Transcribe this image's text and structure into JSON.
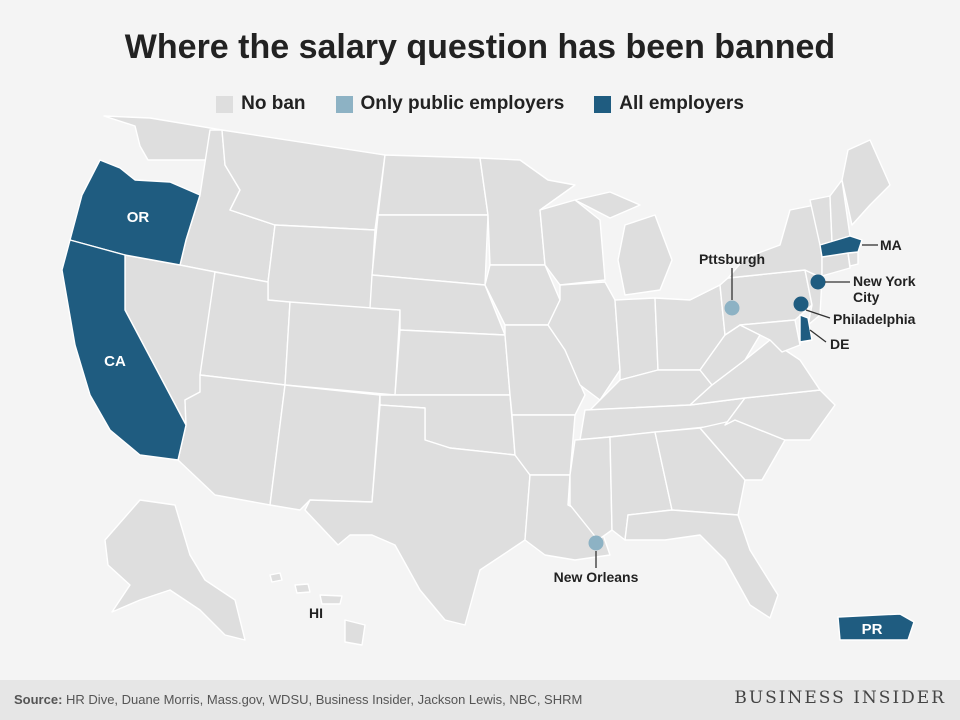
{
  "title": "Where the salary question has been banned",
  "colors": {
    "no_ban": "#dedede",
    "public_only": "#8db2c4",
    "all_employers": "#1f5c80",
    "background": "#f4f4f4"
  },
  "legend": [
    {
      "label": "No ban",
      "category": "no_ban"
    },
    {
      "label": "Only public employers",
      "category": "public_only"
    },
    {
      "label": "All employers",
      "category": "all_employers"
    }
  ],
  "states": {
    "oregon": {
      "label": "OR",
      "category": "all_employers"
    },
    "california": {
      "label": "CA",
      "category": "all_employers"
    },
    "massachusetts": {
      "label": "MA",
      "category": "all_employers"
    },
    "delaware": {
      "label": "DE",
      "category": "all_employers"
    },
    "hawaii": {
      "label": "HI",
      "category": "no_ban"
    },
    "puerto_rico": {
      "label": "PR",
      "category": "all_employers"
    }
  },
  "cities": {
    "pittsburgh": {
      "label": "Pttsburgh",
      "category": "public_only"
    },
    "new_york_city": {
      "label_line1": "New York",
      "label_line2": "City",
      "category": "all_employers"
    },
    "philadelphia": {
      "label": "Philadelphia",
      "category": "all_employers"
    },
    "new_orleans": {
      "label": "New Orleans",
      "category": "public_only"
    }
  },
  "footer": {
    "source_label": "Source:",
    "source_text": "HR Dive, Duane Morris, Mass.gov, WDSU, Business Insider, Jackson Lewis, NBC, SHRM",
    "brand": "BUSINESS INSIDER"
  }
}
